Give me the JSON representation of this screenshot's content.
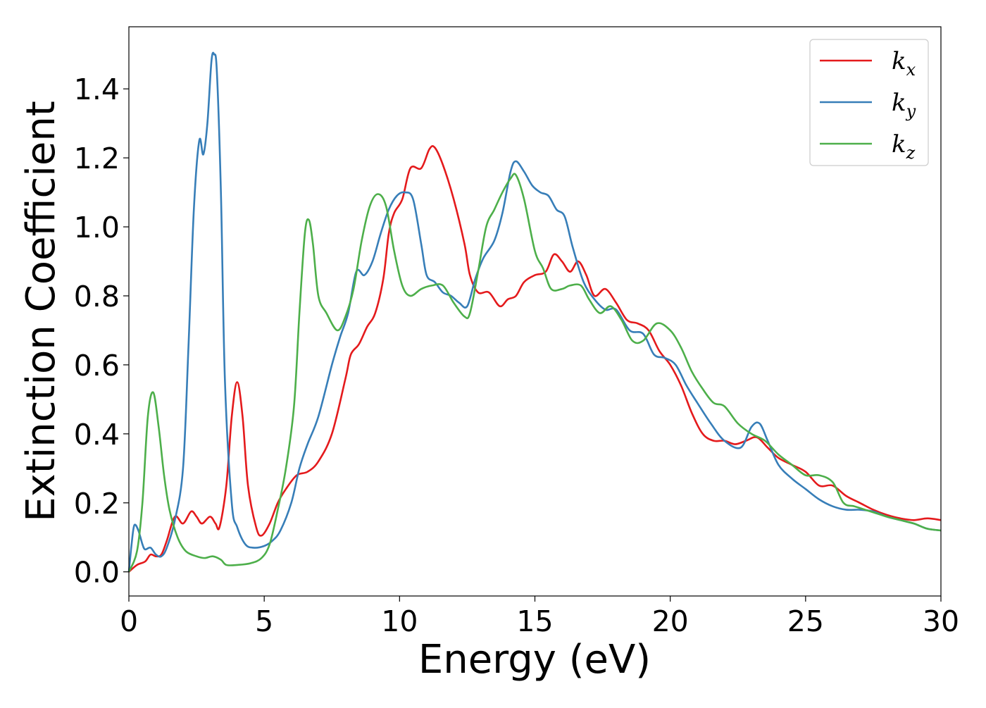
{
  "chart_data": {
    "type": "line",
    "xlabel": "Energy (eV)",
    "ylabel": "Extinction Coefficient",
    "xlim": [
      0,
      30
    ],
    "ylim": [
      -0.07,
      1.58
    ],
    "xticks": [
      "0",
      "5",
      "10",
      "15",
      "20",
      "25",
      "30"
    ],
    "yticks": [
      "0.0",
      "0.2",
      "0.4",
      "0.6",
      "0.8",
      "1.0",
      "1.2",
      "1.4"
    ],
    "legend_position": "top-right",
    "grid": false,
    "series": [
      {
        "name": "k",
        "subscript": "x",
        "color": "#e41a1c",
        "points": [
          [
            0,
            0.0
          ],
          [
            0.3,
            0.02
          ],
          [
            0.6,
            0.03
          ],
          [
            0.8,
            0.05
          ],
          [
            1.0,
            0.045
          ],
          [
            1.2,
            0.05
          ],
          [
            1.4,
            0.09
          ],
          [
            1.7,
            0.16
          ],
          [
            2.0,
            0.14
          ],
          [
            2.3,
            0.175
          ],
          [
            2.5,
            0.16
          ],
          [
            2.7,
            0.14
          ],
          [
            3.0,
            0.16
          ],
          [
            3.2,
            0.14
          ],
          [
            3.35,
            0.13
          ],
          [
            3.6,
            0.25
          ],
          [
            3.8,
            0.45
          ],
          [
            4.0,
            0.55
          ],
          [
            4.2,
            0.45
          ],
          [
            4.4,
            0.25
          ],
          [
            4.7,
            0.13
          ],
          [
            4.9,
            0.105
          ],
          [
            5.2,
            0.14
          ],
          [
            5.5,
            0.2
          ],
          [
            5.8,
            0.24
          ],
          [
            6.2,
            0.28
          ],
          [
            6.6,
            0.29
          ],
          [
            7.0,
            0.32
          ],
          [
            7.5,
            0.4
          ],
          [
            8.0,
            0.56
          ],
          [
            8.2,
            0.63
          ],
          [
            8.5,
            0.66
          ],
          [
            8.8,
            0.71
          ],
          [
            9.1,
            0.75
          ],
          [
            9.4,
            0.85
          ],
          [
            9.6,
            0.98
          ],
          [
            9.8,
            1.04
          ],
          [
            10.1,
            1.08
          ],
          [
            10.4,
            1.17
          ],
          [
            10.8,
            1.17
          ],
          [
            11.1,
            1.225
          ],
          [
            11.3,
            1.23
          ],
          [
            11.6,
            1.18
          ],
          [
            12.0,
            1.08
          ],
          [
            12.4,
            0.95
          ],
          [
            12.6,
            0.86
          ],
          [
            12.9,
            0.81
          ],
          [
            13.3,
            0.81
          ],
          [
            13.7,
            0.77
          ],
          [
            14.0,
            0.79
          ],
          [
            14.3,
            0.8
          ],
          [
            14.6,
            0.84
          ],
          [
            15.0,
            0.86
          ],
          [
            15.4,
            0.87
          ],
          [
            15.7,
            0.92
          ],
          [
            16.0,
            0.9
          ],
          [
            16.3,
            0.87
          ],
          [
            16.6,
            0.9
          ],
          [
            16.9,
            0.86
          ],
          [
            17.2,
            0.8
          ],
          [
            17.6,
            0.82
          ],
          [
            18.0,
            0.78
          ],
          [
            18.4,
            0.73
          ],
          [
            18.8,
            0.72
          ],
          [
            19.2,
            0.7
          ],
          [
            19.6,
            0.64
          ],
          [
            20.0,
            0.6
          ],
          [
            20.4,
            0.54
          ],
          [
            20.8,
            0.46
          ],
          [
            21.2,
            0.4
          ],
          [
            21.6,
            0.38
          ],
          [
            22.0,
            0.38
          ],
          [
            22.4,
            0.37
          ],
          [
            22.8,
            0.38
          ],
          [
            23.2,
            0.39
          ],
          [
            23.6,
            0.36
          ],
          [
            24.0,
            0.33
          ],
          [
            24.5,
            0.31
          ],
          [
            25.0,
            0.29
          ],
          [
            25.5,
            0.25
          ],
          [
            26.0,
            0.25
          ],
          [
            26.5,
            0.22
          ],
          [
            27.0,
            0.2
          ],
          [
            27.5,
            0.18
          ],
          [
            28.0,
            0.165
          ],
          [
            28.5,
            0.155
          ],
          [
            29.0,
            0.15
          ],
          [
            29.5,
            0.155
          ],
          [
            30.0,
            0.15
          ]
        ]
      },
      {
        "name": "k",
        "subscript": "y",
        "color": "#377eb8",
        "points": [
          [
            0,
            0.0
          ],
          [
            0.1,
            0.08
          ],
          [
            0.2,
            0.135
          ],
          [
            0.35,
            0.12
          ],
          [
            0.5,
            0.08
          ],
          [
            0.6,
            0.065
          ],
          [
            0.8,
            0.07
          ],
          [
            1.0,
            0.05
          ],
          [
            1.2,
            0.045
          ],
          [
            1.4,
            0.07
          ],
          [
            1.7,
            0.15
          ],
          [
            2.0,
            0.3
          ],
          [
            2.2,
            0.65
          ],
          [
            2.4,
            1.05
          ],
          [
            2.6,
            1.25
          ],
          [
            2.75,
            1.21
          ],
          [
            2.9,
            1.3
          ],
          [
            3.05,
            1.48
          ],
          [
            3.15,
            1.5
          ],
          [
            3.25,
            1.45
          ],
          [
            3.4,
            1.1
          ],
          [
            3.55,
            0.55
          ],
          [
            3.8,
            0.2
          ],
          [
            4.0,
            0.13
          ],
          [
            4.3,
            0.08
          ],
          [
            4.6,
            0.07
          ],
          [
            5.0,
            0.075
          ],
          [
            5.3,
            0.09
          ],
          [
            5.6,
            0.12
          ],
          [
            6.0,
            0.2
          ],
          [
            6.3,
            0.3
          ],
          [
            6.6,
            0.37
          ],
          [
            7.0,
            0.45
          ],
          [
            7.5,
            0.6
          ],
          [
            7.8,
            0.68
          ],
          [
            8.1,
            0.75
          ],
          [
            8.4,
            0.87
          ],
          [
            8.7,
            0.86
          ],
          [
            9.0,
            0.9
          ],
          [
            9.3,
            0.98
          ],
          [
            9.6,
            1.05
          ],
          [
            9.9,
            1.09
          ],
          [
            10.2,
            1.1
          ],
          [
            10.5,
            1.08
          ],
          [
            10.8,
            0.95
          ],
          [
            11.0,
            0.86
          ],
          [
            11.3,
            0.84
          ],
          [
            11.6,
            0.81
          ],
          [
            11.9,
            0.8
          ],
          [
            12.2,
            0.78
          ],
          [
            12.5,
            0.77
          ],
          [
            12.8,
            0.85
          ],
          [
            13.1,
            0.91
          ],
          [
            13.5,
            0.96
          ],
          [
            13.8,
            1.04
          ],
          [
            14.1,
            1.16
          ],
          [
            14.3,
            1.19
          ],
          [
            14.6,
            1.16
          ],
          [
            14.9,
            1.12
          ],
          [
            15.2,
            1.1
          ],
          [
            15.5,
            1.09
          ],
          [
            15.8,
            1.05
          ],
          [
            16.1,
            1.03
          ],
          [
            16.4,
            0.94
          ],
          [
            16.8,
            0.84
          ],
          [
            17.2,
            0.79
          ],
          [
            17.6,
            0.76
          ],
          [
            18.0,
            0.76
          ],
          [
            18.5,
            0.7
          ],
          [
            19.0,
            0.69
          ],
          [
            19.4,
            0.63
          ],
          [
            19.8,
            0.62
          ],
          [
            20.2,
            0.6
          ],
          [
            20.6,
            0.54
          ],
          [
            21.0,
            0.49
          ],
          [
            21.5,
            0.43
          ],
          [
            22.0,
            0.38
          ],
          [
            22.6,
            0.36
          ],
          [
            23.0,
            0.42
          ],
          [
            23.3,
            0.43
          ],
          [
            23.6,
            0.38
          ],
          [
            24.0,
            0.31
          ],
          [
            24.5,
            0.27
          ],
          [
            25.0,
            0.24
          ],
          [
            25.5,
            0.21
          ],
          [
            26.0,
            0.19
          ],
          [
            26.5,
            0.18
          ],
          [
            27.0,
            0.18
          ],
          [
            27.5,
            0.175
          ],
          [
            28.0,
            0.16
          ],
          [
            28.5,
            0.15
          ],
          [
            29.0,
            0.14
          ],
          [
            29.5,
            0.125
          ],
          [
            30.0,
            0.12
          ]
        ]
      },
      {
        "name": "k",
        "subscript": "z",
        "color": "#4daf4a",
        "points": [
          [
            0,
            0.0
          ],
          [
            0.3,
            0.06
          ],
          [
            0.5,
            0.2
          ],
          [
            0.7,
            0.45
          ],
          [
            0.9,
            0.52
          ],
          [
            1.1,
            0.42
          ],
          [
            1.3,
            0.28
          ],
          [
            1.5,
            0.18
          ],
          [
            1.8,
            0.1
          ],
          [
            2.1,
            0.06
          ],
          [
            2.5,
            0.045
          ],
          [
            2.8,
            0.04
          ],
          [
            3.1,
            0.045
          ],
          [
            3.4,
            0.035
          ],
          [
            3.6,
            0.02
          ],
          [
            4.0,
            0.02
          ],
          [
            4.5,
            0.025
          ],
          [
            4.9,
            0.04
          ],
          [
            5.2,
            0.08
          ],
          [
            5.5,
            0.18
          ],
          [
            5.8,
            0.3
          ],
          [
            6.1,
            0.48
          ],
          [
            6.3,
            0.75
          ],
          [
            6.5,
            0.98
          ],
          [
            6.65,
            1.02
          ],
          [
            6.8,
            0.95
          ],
          [
            7.0,
            0.8
          ],
          [
            7.3,
            0.75
          ],
          [
            7.7,
            0.7
          ],
          [
            8.0,
            0.74
          ],
          [
            8.3,
            0.82
          ],
          [
            8.6,
            0.96
          ],
          [
            8.9,
            1.06
          ],
          [
            9.2,
            1.095
          ],
          [
            9.5,
            1.06
          ],
          [
            9.8,
            0.93
          ],
          [
            10.1,
            0.83
          ],
          [
            10.4,
            0.8
          ],
          [
            10.8,
            0.82
          ],
          [
            11.2,
            0.83
          ],
          [
            11.6,
            0.83
          ],
          [
            12.0,
            0.78
          ],
          [
            12.4,
            0.74
          ],
          [
            12.6,
            0.75
          ],
          [
            12.9,
            0.87
          ],
          [
            13.2,
            1.0
          ],
          [
            13.5,
            1.05
          ],
          [
            13.8,
            1.1
          ],
          [
            14.1,
            1.14
          ],
          [
            14.3,
            1.15
          ],
          [
            14.6,
            1.08
          ],
          [
            15.0,
            0.93
          ],
          [
            15.3,
            0.88
          ],
          [
            15.6,
            0.82
          ],
          [
            16.0,
            0.82
          ],
          [
            16.3,
            0.83
          ],
          [
            16.7,
            0.83
          ],
          [
            17.0,
            0.79
          ],
          [
            17.4,
            0.75
          ],
          [
            17.8,
            0.77
          ],
          [
            18.2,
            0.73
          ],
          [
            18.6,
            0.67
          ],
          [
            19.0,
            0.67
          ],
          [
            19.5,
            0.72
          ],
          [
            20.0,
            0.7
          ],
          [
            20.4,
            0.65
          ],
          [
            20.8,
            0.58
          ],
          [
            21.2,
            0.53
          ],
          [
            21.6,
            0.49
          ],
          [
            22.0,
            0.48
          ],
          [
            22.5,
            0.43
          ],
          [
            23.0,
            0.4
          ],
          [
            23.5,
            0.38
          ],
          [
            24.0,
            0.34
          ],
          [
            24.5,
            0.31
          ],
          [
            25.0,
            0.28
          ],
          [
            25.5,
            0.28
          ],
          [
            26.0,
            0.26
          ],
          [
            26.4,
            0.2
          ],
          [
            26.8,
            0.19
          ],
          [
            27.2,
            0.18
          ],
          [
            27.6,
            0.17
          ],
          [
            28.0,
            0.16
          ],
          [
            28.5,
            0.15
          ],
          [
            29.0,
            0.14
          ],
          [
            29.5,
            0.125
          ],
          [
            30.0,
            0.12
          ]
        ]
      }
    ]
  }
}
